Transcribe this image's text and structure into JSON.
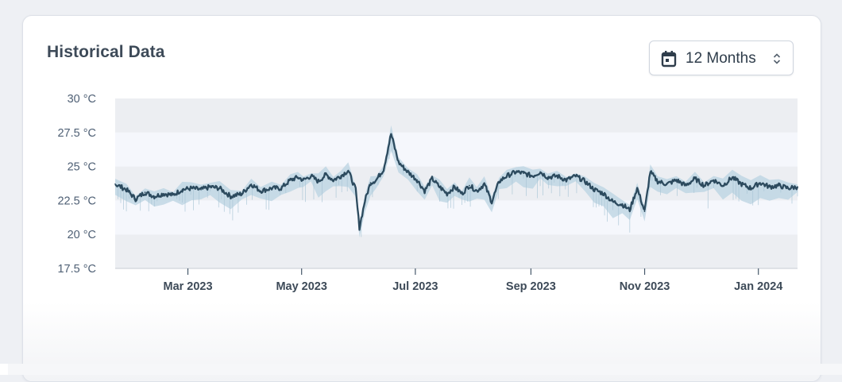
{
  "card": {
    "title": "Historical Data"
  },
  "range_select": {
    "label": "12 Months",
    "icon": "calendar-icon",
    "caret_icon": "updown-chevron-icon"
  },
  "colors": {
    "line": "#2c4a5e",
    "band": "#b9d3e2",
    "stripe_dark": "#eceef2",
    "stripe_light": "#f5f7fc",
    "tick_text": "#4f6075",
    "axis": "#46586a"
  },
  "chart_data": {
    "type": "line",
    "title": "Historical Data",
    "xlabel": "",
    "ylabel": "",
    "ylim": [
      17.5,
      30
    ],
    "y_ticks": [
      30,
      27.5,
      25,
      22.5,
      20,
      17.5
    ],
    "y_tick_labels": [
      "30 °C",
      "27.5 °C",
      "25 °C",
      "22.5 °C",
      "20 °C",
      "17.5 °C"
    ],
    "xlim": [
      "2023-01-21",
      "2024-01-22"
    ],
    "x_ticks": [
      "2023-03-01",
      "2023-05-01",
      "2023-07-01",
      "2023-09-01",
      "2023-11-01",
      "2024-01-01"
    ],
    "x_tick_labels": [
      "Mar 2023",
      "May 2023",
      "Jul 2023",
      "Sep 2023",
      "Nov 2023",
      "Jan 2024"
    ],
    "grid": "horizontal bands",
    "series": [
      {
        "points": [
          [
            "2023-01-21",
            23.7
          ],
          [
            "2023-01-27",
            23.3
          ],
          [
            "2023-02-01",
            22.6
          ],
          [
            "2023-02-06",
            23.1
          ],
          [
            "2023-02-11",
            22.8
          ],
          [
            "2023-02-16",
            23.0
          ],
          [
            "2023-02-21",
            22.9
          ],
          [
            "2023-02-26",
            23.3
          ],
          [
            "2023-03-03",
            23.4
          ],
          [
            "2023-03-08",
            23.3
          ],
          [
            "2023-03-13",
            23.5
          ],
          [
            "2023-03-18",
            23.4
          ],
          [
            "2023-03-24",
            22.8
          ],
          [
            "2023-03-30",
            23.0
          ],
          [
            "2023-04-04",
            23.7
          ],
          [
            "2023-04-09",
            23.2
          ],
          [
            "2023-04-15",
            23.4
          ],
          [
            "2023-04-20",
            23.4
          ],
          [
            "2023-04-25",
            24.0
          ],
          [
            "2023-04-29",
            24.2
          ],
          [
            "2023-05-02",
            24.0
          ],
          [
            "2023-05-06",
            24.3
          ],
          [
            "2023-05-10",
            23.9
          ],
          [
            "2023-05-14",
            24.4
          ],
          [
            "2023-05-18",
            24.0
          ],
          [
            "2023-05-22",
            24.3
          ],
          [
            "2023-05-26",
            24.7
          ],
          [
            "2023-05-30",
            23.3
          ],
          [
            "2023-06-01",
            20.5
          ],
          [
            "2023-06-04",
            22.5
          ],
          [
            "2023-06-07",
            23.8
          ],
          [
            "2023-06-10",
            24.0
          ],
          [
            "2023-06-14",
            24.8
          ],
          [
            "2023-06-18",
            27.4
          ],
          [
            "2023-06-22",
            25.3
          ],
          [
            "2023-06-27",
            24.6
          ],
          [
            "2023-07-02",
            24.0
          ],
          [
            "2023-07-06",
            23.2
          ],
          [
            "2023-07-10",
            24.1
          ],
          [
            "2023-07-14",
            23.5
          ],
          [
            "2023-07-18",
            23.0
          ],
          [
            "2023-07-22",
            23.5
          ],
          [
            "2023-07-26",
            23.0
          ],
          [
            "2023-07-30",
            23.6
          ],
          [
            "2023-08-03",
            23.2
          ],
          [
            "2023-08-07",
            23.7
          ],
          [
            "2023-08-11",
            22.4
          ],
          [
            "2023-08-15",
            23.9
          ],
          [
            "2023-08-19",
            24.3
          ],
          [
            "2023-08-24",
            24.6
          ],
          [
            "2023-08-28",
            24.5
          ],
          [
            "2023-09-02",
            24.3
          ],
          [
            "2023-09-06",
            24.6
          ],
          [
            "2023-09-10",
            24.2
          ],
          [
            "2023-09-15",
            24.3
          ],
          [
            "2023-09-20",
            24.0
          ],
          [
            "2023-09-25",
            24.3
          ],
          [
            "2023-09-30",
            23.9
          ],
          [
            "2023-10-05",
            23.3
          ],
          [
            "2023-10-10",
            23.0
          ],
          [
            "2023-10-15",
            22.4
          ],
          [
            "2023-10-20",
            22.2
          ],
          [
            "2023-10-24",
            21.8
          ],
          [
            "2023-10-28",
            23.4
          ],
          [
            "2023-11-01",
            21.7
          ],
          [
            "2023-11-04",
            24.6
          ],
          [
            "2023-11-08",
            23.9
          ],
          [
            "2023-11-13",
            23.7
          ],
          [
            "2023-11-18",
            24.0
          ],
          [
            "2023-11-23",
            23.6
          ],
          [
            "2023-11-28",
            24.1
          ],
          [
            "2023-12-03",
            23.6
          ],
          [
            "2023-12-08",
            24.0
          ],
          [
            "2023-12-13",
            23.6
          ],
          [
            "2023-12-18",
            24.2
          ],
          [
            "2023-12-23",
            23.7
          ],
          [
            "2023-12-28",
            23.4
          ],
          [
            "2024-01-02",
            23.8
          ],
          [
            "2024-01-07",
            23.5
          ],
          [
            "2024-01-12",
            23.6
          ],
          [
            "2024-01-17",
            23.4
          ],
          [
            "2024-01-22",
            23.5
          ]
        ]
      }
    ],
    "range_band_color": "#b9d3e2"
  }
}
